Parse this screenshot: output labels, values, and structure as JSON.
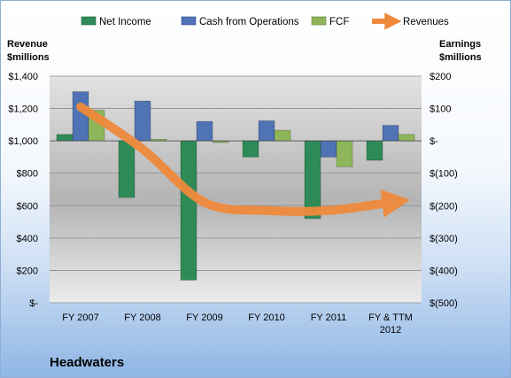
{
  "chart_data": {
    "type": "bar",
    "title": "Headwaters",
    "left_axis": {
      "title_lines": [
        "Revenue",
        "$millions"
      ],
      "range": [
        0,
        1400
      ],
      "ticks": [
        0,
        200,
        400,
        600,
        800,
        1000,
        1200,
        1400
      ],
      "tick_labels": [
        "$-",
        "$200",
        "$400",
        "$600",
        "$800",
        "$1,000",
        "$1,200",
        "$1,400"
      ]
    },
    "right_axis": {
      "title_lines": [
        "Earnings",
        "$millions"
      ],
      "range": [
        -500,
        200
      ],
      "ticks": [
        -500,
        -400,
        -300,
        -200,
        -100,
        0,
        100,
        200
      ],
      "tick_labels": [
        "$(500)",
        "$(400)",
        "$(300)",
        "$(200)",
        "$(100)",
        "$-",
        "$100",
        "$200"
      ]
    },
    "categories": [
      {
        "label_lines": [
          "FY 2007"
        ]
      },
      {
        "label_lines": [
          "FY 2008"
        ]
      },
      {
        "label_lines": [
          "FY 2009"
        ]
      },
      {
        "label_lines": [
          "FY 2010"
        ]
      },
      {
        "label_lines": [
          "FY 2011"
        ]
      },
      {
        "label_lines": [
          "FY & TTM",
          "2012"
        ]
      }
    ],
    "series": [
      {
        "name": "Net Income",
        "kind": "bar",
        "axis": "right",
        "color": "#2e8b57",
        "values": [
          20,
          -175,
          -430,
          -50,
          -240,
          -60
        ]
      },
      {
        "name": "Cash from Operations",
        "kind": "bar",
        "axis": "right",
        "color": "#4f73b5",
        "values": [
          152,
          123,
          60,
          62,
          -50,
          48
        ]
      },
      {
        "name": "FCF",
        "kind": "bar",
        "axis": "right",
        "color": "#8fb55a",
        "values": [
          95,
          5,
          -5,
          33,
          -80,
          20
        ]
      },
      {
        "name": "Revenues",
        "kind": "arrow",
        "axis": "left",
        "color": "#ef8a3c",
        "values": [
          1210,
          950,
          620,
          570,
          570,
          620
        ]
      }
    ],
    "grid": true,
    "legend": "top"
  }
}
